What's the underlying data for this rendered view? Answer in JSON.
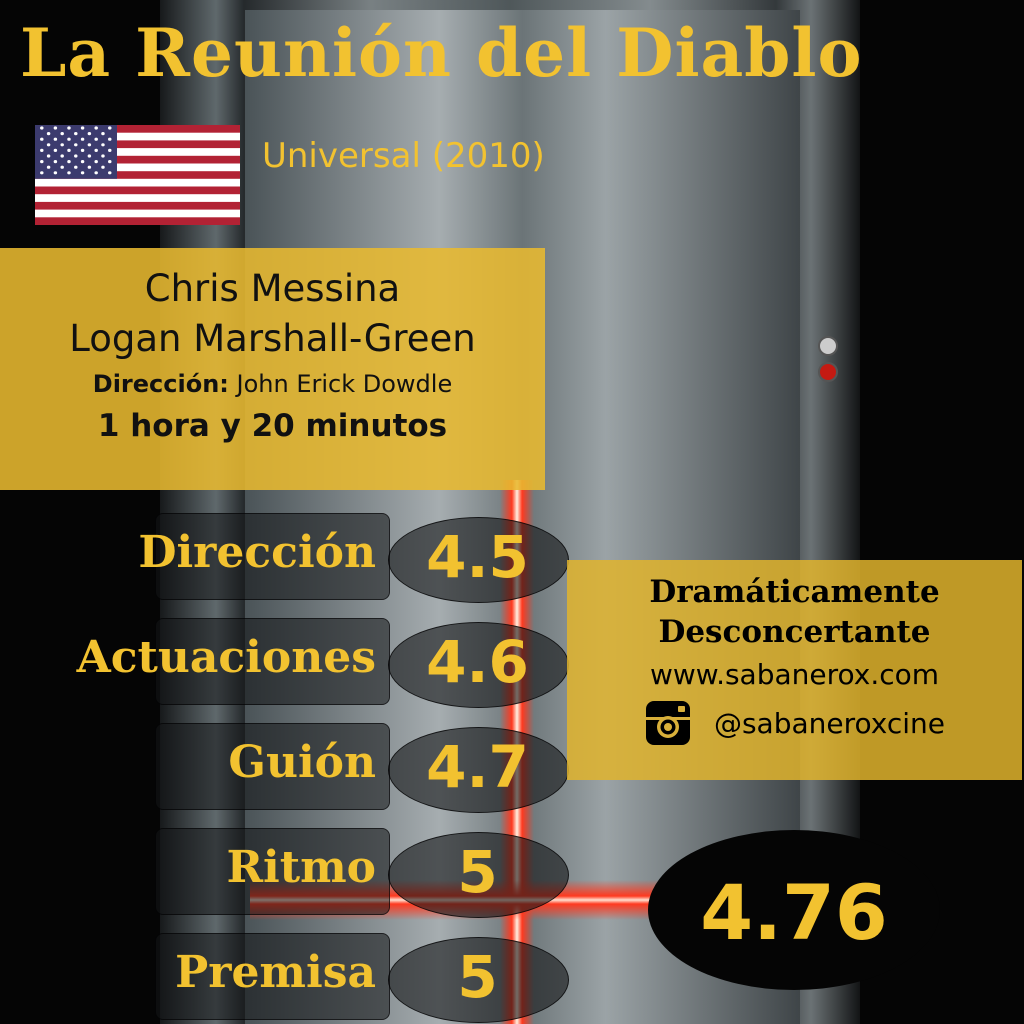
{
  "title": "La Reunión del Diablo",
  "country_flag": "usa-flag",
  "studio_year": "Universal (2010)",
  "cast": [
    "Chris Messina",
    "Logan Marshall-Green"
  ],
  "director_label": "Dirección:",
  "director": "John Erick Dowdle",
  "duration": "1 hora y 20 minutos",
  "ratings": [
    {
      "label": "Dirección",
      "value": "4.5"
    },
    {
      "label": "Actuaciones",
      "value": "4.6"
    },
    {
      "label": "Guión",
      "value": "4.7"
    },
    {
      "label": "Ritmo",
      "value": "5"
    },
    {
      "label": "Premisa",
      "value": "5"
    }
  ],
  "verdict": [
    "Dramáticamente",
    "Desconcertante"
  ],
  "website": "www.sabanerox.com",
  "instagram": "@sabaneroxcine",
  "total_score": "4.76",
  "colors": {
    "accent": "#f2c230",
    "panel": "#e8b930",
    "dark": "#050505"
  }
}
